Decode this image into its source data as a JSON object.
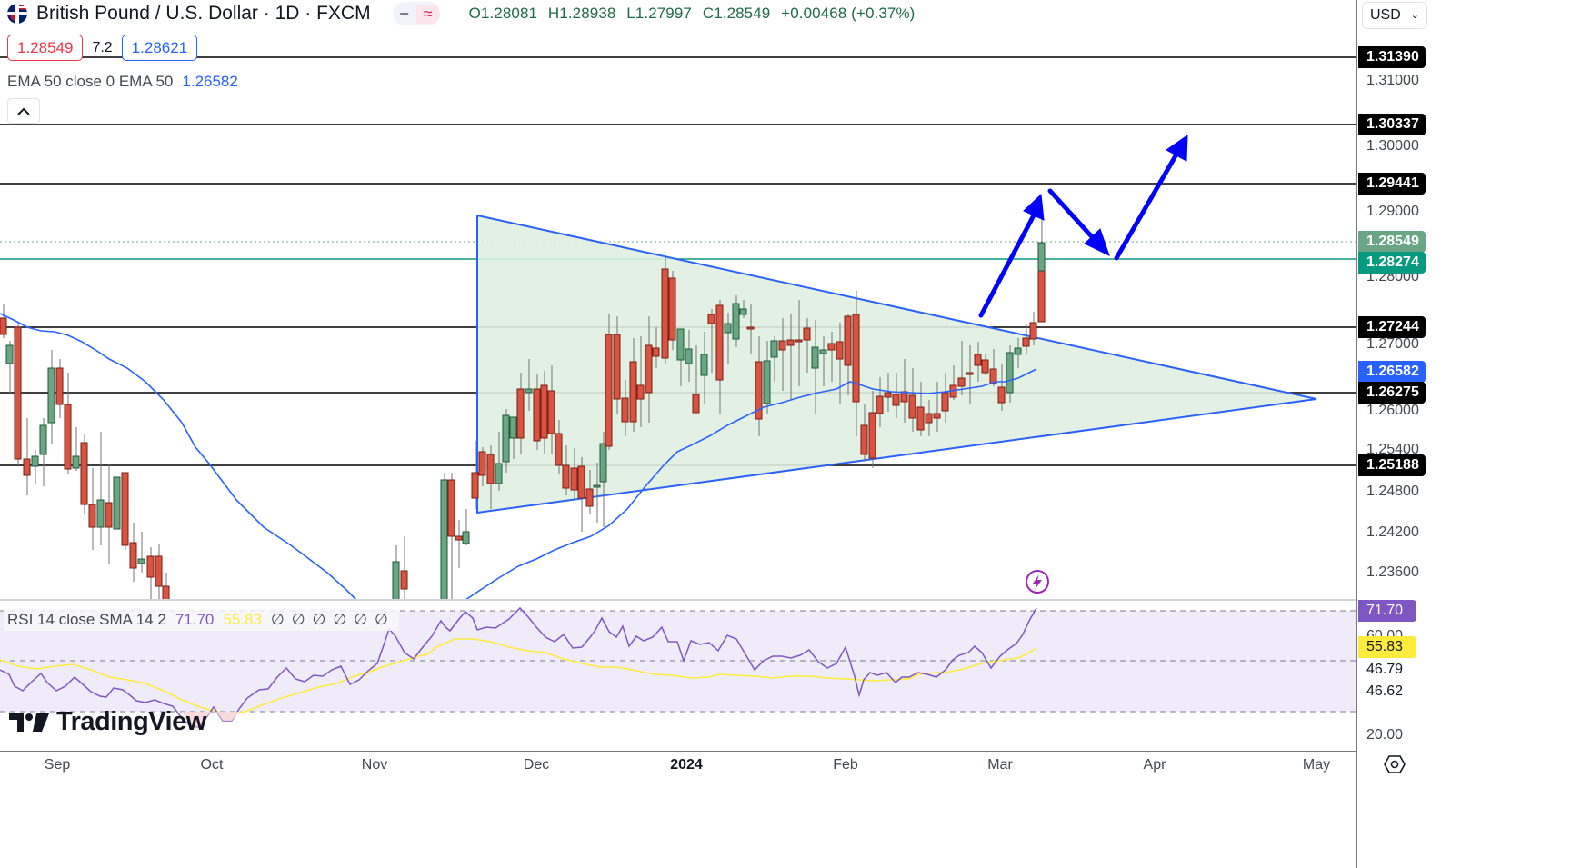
{
  "header": {
    "symbol_title": "British Pound / U.S. Dollar · 1D · FXCM",
    "icon": "gbp-usd-flag-icon",
    "ohlc": {
      "open": "O1.28081",
      "high": "H1.28938",
      "low": "L1.27997",
      "close": "C1.28549",
      "change": "+0.00468 (+0.37%)"
    },
    "sell_price": "1.28549",
    "spread": "7.2",
    "buy_price": "1.28621",
    "pill_icons": [
      "minus-icon",
      "wave-approx-icon"
    ]
  },
  "indicators": {
    "ema": {
      "label": "EMA 50 close 0 EMA 50",
      "value": "1.26582",
      "color": "#2962ff"
    },
    "rsi": {
      "label": "RSI 14 close SMA 14 2",
      "rsi_value": "71.70",
      "sma_value": "55.83",
      "na_values": [
        "∅",
        "∅",
        "∅",
        "∅",
        "∅",
        "∅"
      ]
    }
  },
  "price_axis": {
    "currency": "USD",
    "ticks": [
      "1.31000",
      "1.30000",
      "1.29000",
      "1.28000",
      "1.27000",
      "1.26000",
      "1.25400",
      "1.24800",
      "1.24200",
      "1.23600"
    ],
    "level_labels": [
      {
        "value": "1.31390",
        "style": "black"
      },
      {
        "value": "1.30337",
        "style": "black"
      },
      {
        "value": "1.29441",
        "style": "black"
      },
      {
        "value": "1.28549",
        "style": "green"
      },
      {
        "value": "1.28274",
        "style": "teal"
      },
      {
        "value": "1.27244",
        "style": "black"
      },
      {
        "value": "1.26582",
        "style": "blue"
      },
      {
        "value": "1.26275",
        "style": "black"
      },
      {
        "value": "1.25188",
        "style": "black"
      }
    ]
  },
  "rsi_axis": {
    "labels": [
      {
        "value": "71.70",
        "style": "purple"
      },
      {
        "value": "55.83",
        "style": "yellow"
      }
    ],
    "ticks": [
      "60.00",
      "46.79",
      "46.62",
      "20.00"
    ]
  },
  "time_axis": {
    "labels": [
      "Sep",
      "Oct",
      "Nov",
      "Dec",
      "2024",
      "Feb",
      "Mar",
      "Apr",
      "May"
    ]
  },
  "branding": {
    "logo_text": "TradingView"
  },
  "colors": {
    "up": "#6ba583",
    "down": "#d75442",
    "ema": "#2962ff",
    "triangle_fill": "#dff0e0",
    "arrow": "#0000ff",
    "rsi_line": "#7e57c2",
    "rsi_sma": "#ffeb3b",
    "rsi_band": "#efebf8"
  },
  "chart_data": [
    {
      "type": "candlestick",
      "title": "British Pound / U.S. Dollar · 1D · FXCM",
      "xlabel": "",
      "ylabel": "USD",
      "x_tick_labels": [
        "Sep",
        "Oct",
        "Nov",
        "Dec",
        "2024",
        "Feb",
        "Mar",
        "Apr",
        "May"
      ],
      "ylim": [
        1.233,
        1.318
      ],
      "grid": false,
      "last_bar": {
        "open": 1.28081,
        "high": 1.28938,
        "low": 1.27997,
        "close": 1.28549,
        "change": 0.00468,
        "change_pct": 0.37
      },
      "horizontal_levels": [
        1.3139,
        1.30337,
        1.29441,
        1.28274,
        1.27244,
        1.26275,
        1.25188
      ],
      "last_price_line": 1.28549,
      "series": [
        {
          "name": "EMA 50",
          "last_value": 1.26582,
          "points_approx": [
            [
              "Aug-29",
              1.274
            ],
            [
              "Sep-8",
              1.272
            ],
            [
              "Sep-20",
              1.262
            ],
            [
              "Oct-2",
              1.247
            ],
            [
              "Oct-15",
              1.239
            ],
            [
              "Nov-1",
              1.233
            ],
            [
              "Nov-20",
              1.242
            ],
            [
              "Dec-15",
              1.251
            ],
            [
              "Jan-5",
              1.258
            ],
            [
              "Feb-1",
              1.264
            ],
            [
              "Feb-20",
              1.263
            ],
            [
              "Mar-8",
              1.2658
            ]
          ]
        }
      ],
      "annotations": [
        {
          "type": "symmetrical-triangle",
          "points": [
            [
              "Nov-21",
              1.29
            ],
            [
              "Nov-21",
              1.245
            ],
            [
              "Apr-25",
              1.2612
            ]
          ]
        },
        {
          "type": "projection-arrows",
          "path": [
            [
              "Feb-29",
              1.274
            ],
            [
              "Mar-8",
              1.294
            ],
            [
              "Mar-10",
              1.2945
            ],
            [
              "Mar-20",
              1.283
            ],
            [
              "Mar-22",
              1.283
            ],
            [
              "Apr-2",
              1.305
            ]
          ]
        }
      ]
    },
    {
      "type": "line",
      "title": "RSI 14 close SMA 14 2",
      "ylim": [
        15,
        75
      ],
      "bands": [
        30,
        50,
        70
      ],
      "series": [
        {
          "name": "RSI 14",
          "last_value": 71.7
        },
        {
          "name": "RSI SMA 14",
          "last_value": 55.83
        }
      ],
      "axis_ticks": [
        60.0,
        46.79,
        46.62,
        20.0
      ]
    }
  ]
}
